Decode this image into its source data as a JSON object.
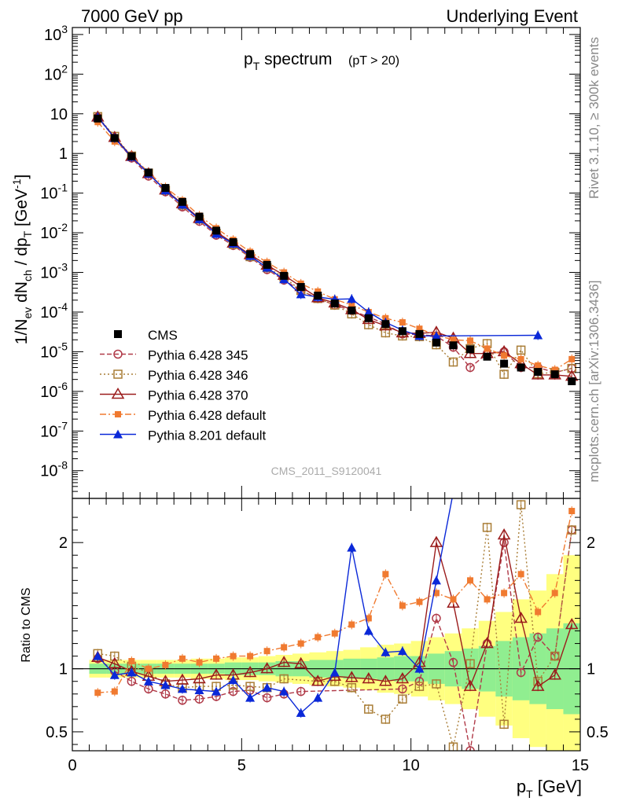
{
  "header": {
    "left": "7000 GeV pp",
    "right": "Underlying Event"
  },
  "side_labels": {
    "rivet": "Rivet 3.1.10, ≥ 300k events",
    "mcplots": "mcplots.cern.ch [arXiv:1306.3436]"
  },
  "watermark": "CMS_2011_S9120041",
  "colors": {
    "cms": "#000000",
    "p345": "#b03a48",
    "p346": "#a97d36",
    "p370": "#9b1c1c",
    "p6def": "#f07a30",
    "p8def": "#0a28d8",
    "band_inner": "#90ee90",
    "band_outer": "#ffff80"
  },
  "chart_data": [
    {
      "panel": "main",
      "type": "scatter",
      "title_main": "p",
      "title_sub": "T",
      "title_rest": " spectrum",
      "title_cut": "(pT > 20)",
      "ylabel": "1/N_ev dN_ch / dp_T [GeV^-1]",
      "yscale": "log",
      "ylim": [
        2e-09,
        1500
      ],
      "xlim": [
        0,
        15
      ],
      "y_ticks": [
        "10^-8",
        "10^-7",
        "10^-6",
        "10^-5",
        "10^-4",
        "10^-3",
        "10^-2",
        "10^-1",
        "1",
        "10",
        "10^2",
        "10^3"
      ],
      "x": [
        0.75,
        1.25,
        1.75,
        2.25,
        2.75,
        3.25,
        3.75,
        4.25,
        4.75,
        5.25,
        5.75,
        6.25,
        6.75,
        7.25,
        7.75,
        8.25,
        8.75,
        9.25,
        9.75,
        10.25,
        10.75,
        11.25,
        11.75,
        12.25,
        12.75,
        13.25,
        13.75,
        14.25,
        14.75
      ],
      "series": [
        {
          "name": "CMS",
          "key": "cms",
          "values": [
            7.6,
            2.45,
            0.85,
            0.33,
            0.135,
            0.06,
            0.0255,
            0.0113,
            0.0058,
            0.0029,
            0.00155,
            0.00082,
            0.00043,
            0.00026,
            0.000165,
            0.00011,
            7e-05,
            5e-05,
            3.3e-05,
            2.8e-05,
            1.7e-05,
            1.45e-05,
            1.15e-05,
            7.5e-06,
            5e-06,
            4e-06,
            3.1e-06,
            2.7e-06,
            1.8e-06
          ]
        },
        {
          "name": "Pythia 6.428 345",
          "key": "p345",
          "values": [
            8.2,
            2.4,
            0.77,
            0.27,
            0.108,
            0.045,
            0.0195,
            0.0087,
            0.0048,
            0.0024,
            0.00118,
            0.00064,
            0.00035,
            0.00022,
            0.00015,
            0.00011,
            7.5e-05,
            5e-05,
            2.8e-05,
            2.7e-05,
            2.5e-05,
            1.3e-05,
            4e-06,
            9e-06,
            1e-05,
            4e-06,
            4e-06,
            3e-06,
            3.8e-06
          ]
        },
        {
          "name": "Pythia 6.428 346",
          "key": "p346",
          "values": [
            8.5,
            2.7,
            0.86,
            0.32,
            0.118,
            0.05,
            0.022,
            0.0097,
            0.0051,
            0.0025,
            0.00132,
            0.00076,
            0.00035,
            0.00022,
            0.00015,
            9e-05,
            4.8e-05,
            3e-05,
            2.5e-05,
            2.4e-05,
            1.5e-05,
            5.5e-06,
            1.2e-05,
            1.6e-05,
            2.7e-06,
            1.1e-05,
            2.8e-06,
            3e-06,
            3.8e-06
          ]
        },
        {
          "name": "Pythia 6.428 370",
          "key": "p370",
          "values": [
            8.3,
            2.55,
            0.84,
            0.31,
            0.12,
            0.054,
            0.023,
            0.0105,
            0.0055,
            0.0028,
            0.00153,
            0.00085,
            0.00044,
            0.00023,
            0.00017,
            0.000115,
            6.5e-05,
            4.5e-05,
            3e-05,
            2.9e-05,
            3.1e-05,
            2.2e-05,
            9e-06,
            9e-06,
            1e-05,
            5e-06,
            2.6e-06,
            2.6e-06,
            2.4e-06
          ]
        },
        {
          "name": "Pythia 6.428 default",
          "key": "p6def",
          "values": [
            6.2,
            2.0,
            0.9,
            0.33,
            0.14,
            0.065,
            0.027,
            0.013,
            0.0066,
            0.0033,
            0.0018,
            0.001,
            0.00052,
            0.00033,
            0.00021,
            0.00015,
            0.0001,
            7e-05,
            5.5e-05,
            3.8e-05,
            2.6e-05,
            2e-05,
            1.9e-05,
            1.2e-05,
            8e-06,
            6.5e-06,
            4.5e-06,
            3.5e-06,
            6.5e-06
          ]
        },
        {
          "name": "Pythia 8.201 default",
          "key": "p8def",
          "values": [
            8.3,
            2.45,
            0.82,
            0.31,
            0.117,
            0.051,
            0.022,
            0.0094,
            0.0053,
            0.0026,
            0.00132,
            0.00067,
            0.00028,
            0.00024,
            0.00021,
            0.000215,
            0.0001,
            5.5e-05,
            3.5e-05,
            2.5e-05,
            2.5e-05,
            null,
            null,
            null,
            null,
            null,
            2.6e-05,
            null,
            null
          ]
        }
      ],
      "legend": "left-middle"
    },
    {
      "panel": "ratio",
      "type": "line",
      "ylabel": "Ratio to CMS",
      "ylim": [
        0.35,
        2.35
      ],
      "xlim": [
        0,
        15
      ],
      "xlabel": "p_T [GeV]",
      "x_ticks": [
        "0",
        "5",
        "10",
        "15"
      ],
      "y_ticks": [
        "0.5",
        "1",
        "2"
      ],
      "x": [
        0.75,
        1.25,
        1.75,
        2.25,
        2.75,
        3.25,
        3.75,
        4.25,
        4.75,
        5.25,
        5.75,
        6.25,
        6.75,
        7.25,
        7.75,
        8.25,
        8.75,
        9.25,
        9.75,
        10.25,
        10.75,
        11.25,
        11.75,
        12.25,
        12.75,
        13.25,
        13.75,
        14.25,
        14.75
      ],
      "band_inner": [
        0.04,
        0.04,
        0.04,
        0.04,
        0.04,
        0.04,
        0.04,
        0.04,
        0.05,
        0.05,
        0.05,
        0.06,
        0.06,
        0.07,
        0.07,
        0.08,
        0.08,
        0.09,
        0.1,
        0.1,
        0.12,
        0.14,
        0.16,
        0.18,
        0.22,
        0.25,
        0.28,
        0.32,
        0.36
      ],
      "band_outer": [
        0.07,
        0.07,
        0.07,
        0.07,
        0.07,
        0.07,
        0.08,
        0.08,
        0.09,
        0.09,
        0.1,
        0.11,
        0.12,
        0.13,
        0.14,
        0.15,
        0.17,
        0.19,
        0.2,
        0.22,
        0.25,
        0.28,
        0.32,
        0.38,
        0.45,
        0.55,
        0.62,
        0.75,
        0.9
      ],
      "series": [
        {
          "name": "Pythia 6.428 345",
          "key": "p345",
          "values": [
            1.08,
            0.98,
            0.9,
            0.84,
            0.8,
            0.75,
            0.76,
            0.78,
            0.82,
            0.83,
            0.77,
            0.8,
            0.82,
            null,
            null,
            null,
            null,
            null,
            0.84,
            0.9,
            1.4,
            1.05,
            0.35,
            1.2,
            2.0,
            0.97,
            1.25,
            1.1,
            2.1
          ]
        },
        {
          "name": "Pythia 6.428 346",
          "key": "p346",
          "values": [
            1.12,
            1.1,
            1.02,
            0.97,
            0.88,
            0.85,
            0.86,
            0.86,
            0.87,
            0.86,
            0.85,
            0.92,
            null,
            0.9,
            0.9,
            0.85,
            0.68,
            0.6,
            0.76,
            0.86,
            0.88,
            0.38,
            1.04,
            2.12,
            0.56,
            2.3,
            0.9,
            1.1,
            2.1
          ]
        },
        {
          "name": "Pythia 6.428 370",
          "key": "p370",
          "values": [
            1.09,
            1.04,
            0.98,
            0.94,
            0.9,
            0.91,
            0.92,
            0.95,
            0.95,
            0.97,
            1.0,
            1.05,
            1.04,
            0.9,
            0.94,
            0.93,
            0.92,
            0.9,
            0.92,
            1.05,
            2.0,
            1.52,
            0.86,
            1.2,
            2.06,
            1.4,
            0.86,
            0.95,
            1.35
          ]
        },
        {
          "name": "Pythia 6.428 default",
          "key": "p6def",
          "values": [
            0.81,
            0.82,
            1.06,
            1.0,
            1.03,
            1.08,
            1.05,
            1.08,
            1.1,
            1.1,
            1.14,
            1.17,
            1.2,
            1.25,
            1.28,
            1.35,
            1.4,
            1.75,
            1.5,
            1.53,
            1.6,
            1.55,
            1.7,
            1.55,
            1.6,
            1.75,
            1.45,
            1.6,
            2.25
          ]
        },
        {
          "name": "Pythia 8.201 default",
          "key": "p8def",
          "values": [
            1.1,
            0.95,
            0.97,
            0.9,
            0.87,
            0.84,
            0.83,
            0.82,
            0.91,
            0.77,
            0.85,
            0.82,
            0.65,
            0.77,
            0.97,
            1.96,
            1.3,
            1.13,
            1.14,
            1.0,
            1.7,
            2.4,
            null,
            null,
            null,
            null,
            null,
            null,
            null
          ]
        }
      ]
    }
  ]
}
